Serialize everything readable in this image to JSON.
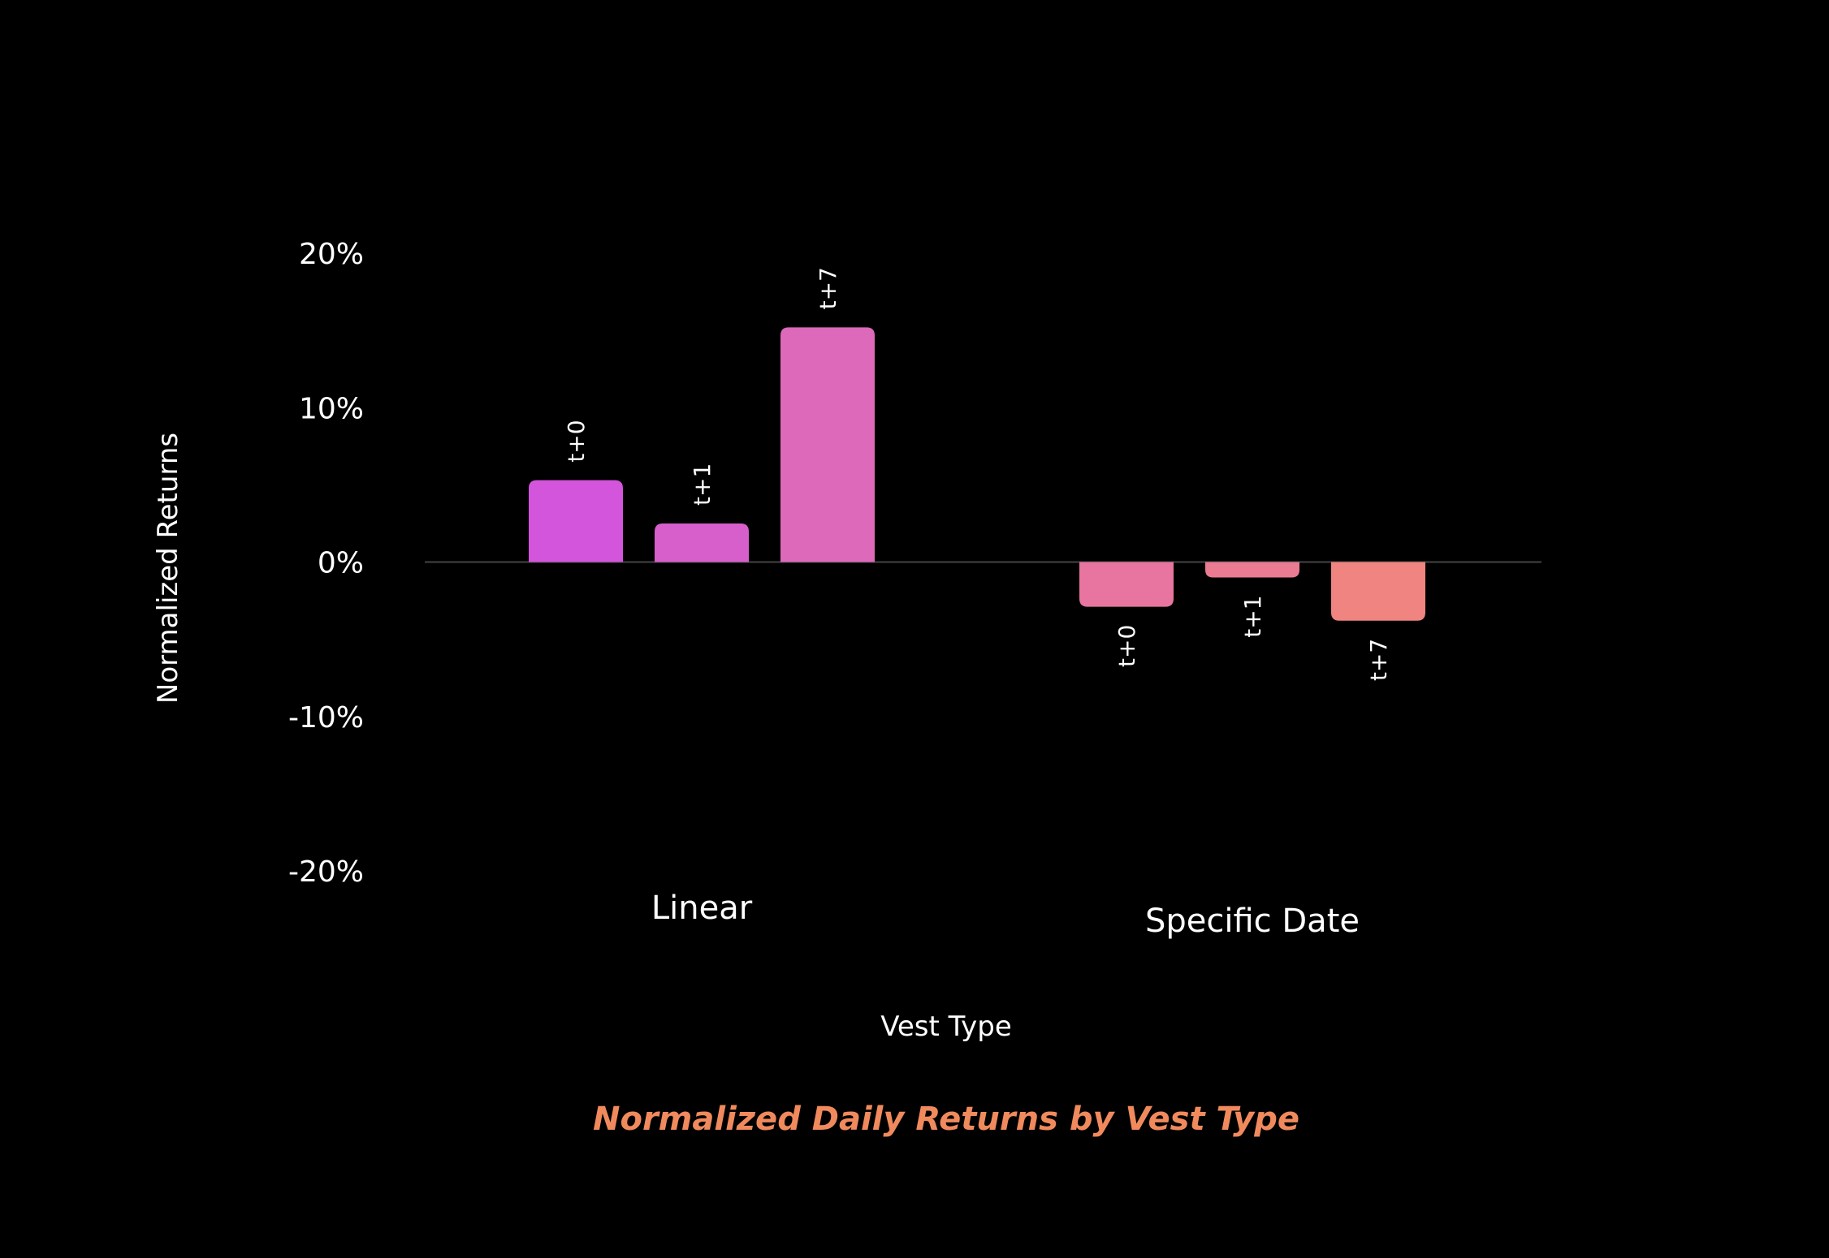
{
  "chart_data": {
    "type": "bar",
    "title": "Normalized Daily Returns by Vest Type",
    "xlabel": "Vest Type",
    "ylabel": "Normalized Returns",
    "ylim": [
      -20,
      20
    ],
    "yticks": [
      20,
      10,
      0,
      -10,
      -20
    ],
    "ytick_labels": [
      "20%",
      "10%",
      "0%",
      "-10%",
      "-20%"
    ],
    "categories": [
      "Linear",
      "Specific Date"
    ],
    "grid": false,
    "groups": [
      {
        "category": "Linear",
        "bars": [
          {
            "label": "t+0",
            "value": 5.3,
            "color": "#d355db"
          },
          {
            "label": "t+1",
            "value": 2.5,
            "color": "#d65fcc"
          },
          {
            "label": "t+7",
            "value": 15.2,
            "color": "#dd69bb"
          }
        ]
      },
      {
        "category": "Specific Date",
        "bars": [
          {
            "label": "t+0",
            "value": -2.9,
            "color": "#e7759f"
          },
          {
            "label": "t+1",
            "value": -1.0,
            "color": "#ea7b93"
          },
          {
            "label": "t+7",
            "value": -3.8,
            "color": "#ef8480"
          }
        ]
      }
    ],
    "colors": {
      "title": "#f08a5d",
      "text": "#ffffff",
      "baseline": "#444444",
      "background": "#000000"
    }
  }
}
